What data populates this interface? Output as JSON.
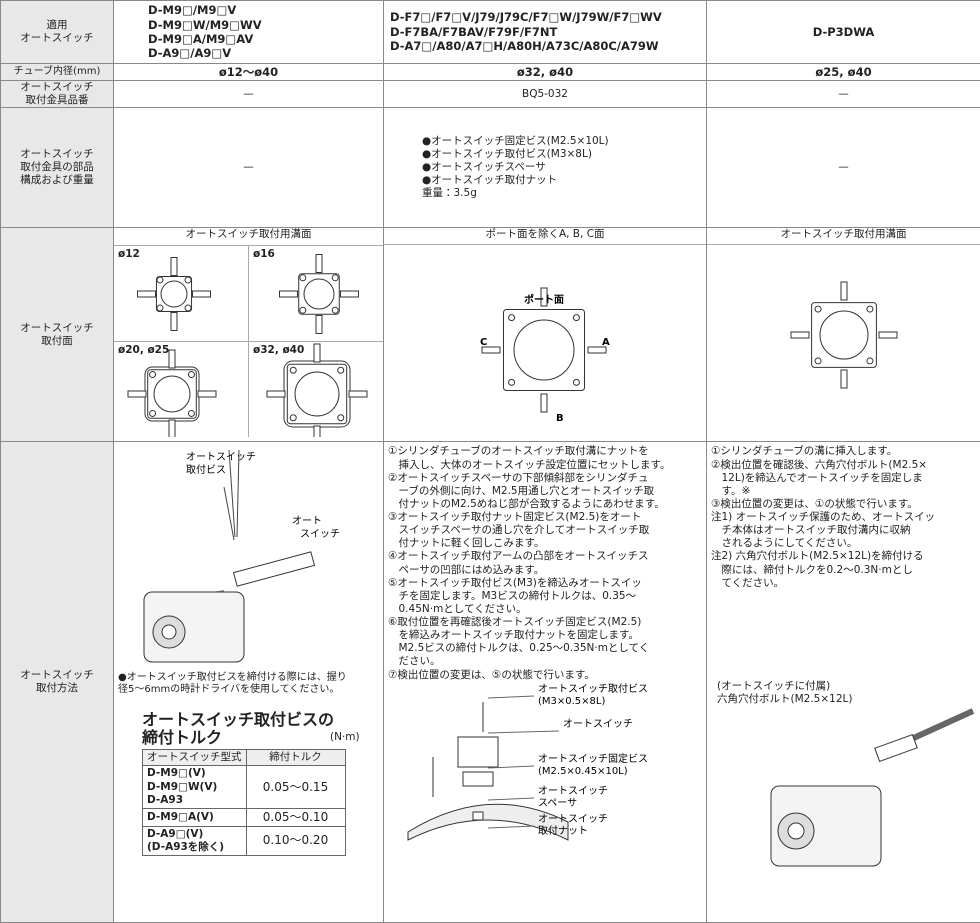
{
  "table": {
    "header": {
      "label_lines": [
        "適用",
        "オートスイッチ"
      ],
      "col1_lines": [
        "D-M9□/M9□V",
        "D-M9□W/M9□WV",
        "D-M9□A/M9□AV",
        "D-A9□/A9□V"
      ],
      "col2_lines": [
        "D-F7□/F7□V/J79/J79C/F7□W/J79W/F7□WV",
        "D-F7BA/F7BAV/F79F/F7NT",
        "D-A7□/A80/A7□H/A80H/A73C/A80C/A79W"
      ],
      "col3_lines": [
        "D-P3DWA"
      ]
    },
    "tube_bore": {
      "label": "チューブ内径(mm)",
      "values": [
        "ø12〜ø40",
        "ø32, ø40",
        "ø25, ø40"
      ]
    },
    "bracket_part_no": {
      "label_lines": [
        "オートスイッチ",
        "取付金具品番"
      ],
      "values": [
        "—",
        "BQ5-032",
        "—"
      ]
    },
    "bracket_parts": {
      "label_lines": [
        "オートスイッチ",
        "取付金具の部品",
        "構成および重量"
      ],
      "col1": "—",
      "col2_items": [
        "●オートスイッチ固定ビス(M2.5×10L)",
        "●オートスイッチ取付ビス(M3×8L)",
        "●オートスイッチスペーサ",
        "●オートスイッチ取付ナット"
      ],
      "col2_weight": "重量：3.5g",
      "col3": "—"
    },
    "mounting_surface": {
      "label_lines": [
        "オートスイッチ",
        "取付面"
      ],
      "col1_heading": "オートスイッチ取付用溝面",
      "col1_sizes": [
        "ø12",
        "ø16",
        "ø20, ø25",
        "ø32, ø40"
      ],
      "col2_heading": "ポート面を除くA, B, C面",
      "col2_port": "ポート面",
      "col2_c": "C",
      "col2_a": "A",
      "col2_b": "B",
      "col3_heading": "オートスイッチ取付用溝面"
    },
    "mounting_method": {
      "label_lines": [
        "オートスイッチ",
        "取付方法"
      ],
      "col1": {
        "callout_screw_lines": [
          "オートスイッチ",
          "取付ビス"
        ],
        "callout_switch_lines": [
          "オート",
          "スイッチ"
        ],
        "note_lines": [
          "●オートスイッチ取付ビスを締付ける際には、握り",
          "径5〜6mmの時計ドライバを使用してください。"
        ],
        "torque_title_lines": [
          "オートスイッチ取付ビスの",
          "締付トルク"
        ],
        "torque_unit": "(N·m)",
        "torque_header": [
          "オートスイッチ型式",
          "締付トルク"
        ],
        "torque_rows": [
          {
            "model_lines": [
              "D-M9□(V)",
              "D-M9□W(V)",
              "D-A93"
            ],
            "torque": "0.05〜0.15"
          },
          {
            "model_lines": [
              "D-M9□A(V)"
            ],
            "torque": "0.05〜0.10"
          },
          {
            "model_lines": [
              "D-A9□(V)",
              "(D-A93を除く)"
            ],
            "torque": "0.10〜0.20"
          }
        ]
      },
      "col2": {
        "steps": [
          [
            "①シリンダチューブのオートスイッチ取付溝にナットを",
            "挿入し、大体のオートスイッチ設定位置にセットします。"
          ],
          [
            "②オートスイッチスペーサの下部傾斜部をシリンダチュ",
            "ーブの外側に向け、M2.5用通し穴とオートスイッチ取",
            "付ナットのM2.5めねじ部が合致するようにあわせます。"
          ],
          [
            "③オートスイッチ取付ナット固定ビス(M2.5)をオート",
            "スイッチスペーサの通し穴を介してオートスイッチ取",
            "付ナットに軽く回しこみます。"
          ],
          [
            "④オートスイッチ取付アームの凸部をオートスイッチス",
            "ペーサの凹部にはめ込みます。"
          ],
          [
            "⑤オートスイッチ取付ビス(M3)を締込みオートスイッ",
            "チを固定します。M3ビスの締付トルクは、0.35〜",
            "0.45N·mとしてください。"
          ],
          [
            "⑥取付位置を再確認後オートスイッチ固定ビス(M2.5)",
            "を締込みオートスイッチ取付ナットを固定します。",
            "M2.5ビスの締付トルクは、0.25〜0.35N·mとしてく",
            "ださい。"
          ],
          [
            "⑦検出位置の変更は、⑤の状態で行います。"
          ]
        ],
        "diagram_labels": [
          [
            "オートスイッチ取付ビス",
            "(M3×0.5×8L)"
          ],
          [
            "オートスイッチ"
          ],
          [
            "オートスイッチ固定ビス",
            "(M2.5×0.45×10L)"
          ],
          [
            "オートスイッチ",
            "スペーサ"
          ],
          [
            "オートスイッチ",
            "取付ナット"
          ]
        ]
      },
      "col3": {
        "steps": [
          [
            "①シリンダチューブの溝に挿入します。"
          ],
          [
            "②検出位置を確認後、六角穴付ボルト(M2.5×",
            "12L)を締込んでオートスイッチを固定しま",
            "す。※"
          ],
          [
            "③検出位置の変更は、①の状態で行います。"
          ],
          [
            "注1) オートスイッチ保護のため、オートスイッ",
            "チ本体はオートスイッチ取付溝内に収納",
            "されるようにしてください。"
          ],
          [
            "注2) 六角穴付ボルト(M2.5×12L)を締付ける",
            "際には、締付トルクを0.2〜0.3N·mとし",
            "てください。"
          ]
        ],
        "caption_lines": [
          "(オートスイッチに付属)",
          "六角穴付ボルト(M2.5×12L)"
        ]
      }
    }
  }
}
